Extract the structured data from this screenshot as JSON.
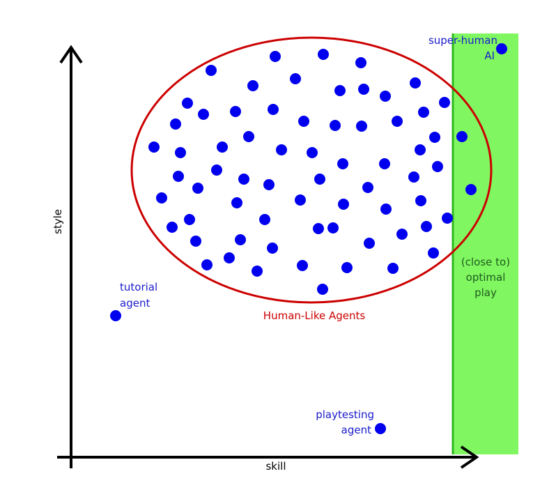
{
  "axes": {
    "x_label": "skill",
    "y_label": "style"
  },
  "regions": {
    "optimal_zone": {
      "label_lines": [
        "(close to)",
        "optimal",
        "play"
      ],
      "fill": "#80f760",
      "stroke": "#2db81e"
    },
    "human_like": {
      "label": "Human-Like Agents",
      "stroke": "#cc0000"
    }
  },
  "agents": {
    "tutorial": {
      "label_lines": [
        "tutorial",
        "agent"
      ]
    },
    "playtesting": {
      "label_lines": [
        "playtesting",
        "agent"
      ]
    },
    "super_human": {
      "label_lines": [
        "super-human",
        "AI"
      ]
    }
  },
  "colors": {
    "dot": "#0000ee",
    "label_blue": "#1a1acc",
    "axis": "#000000"
  }
}
